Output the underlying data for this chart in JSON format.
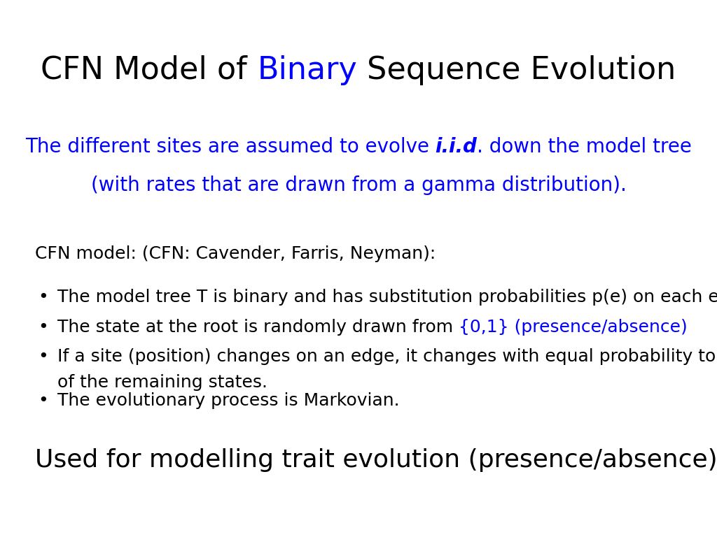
{
  "title_parts": [
    {
      "text": "CFN Model of ",
      "color": "#000000",
      "bold": false,
      "italic": false
    },
    {
      "text": "Binary",
      "color": "#0000FF",
      "bold": false,
      "italic": false
    },
    {
      "text": " Sequence Evolution",
      "color": "#000000",
      "bold": false,
      "italic": false
    }
  ],
  "subtitle_line1_parts": [
    {
      "text": "The different sites are assumed to evolve ",
      "color": "#0000FF",
      "bold": false,
      "italic": false
    },
    {
      "text": "i.i.d",
      "color": "#0000FF",
      "bold": true,
      "italic": true
    },
    {
      "text": ". down the model tree",
      "color": "#0000FF",
      "bold": false,
      "italic": false
    }
  ],
  "subtitle_line2": "(with rates that are drawn from a gamma distribution).",
  "subtitle_color": "#0000FF",
  "cfn_header": "CFN model: (CFN: Cavender, Farris, Neyman):",
  "bullet_items": [
    {
      "parts": [
        {
          "text": "The model tree T is binary and has substitution probabilities p(e) on each edge e.",
          "color": "#000000",
          "bold": false,
          "italic": false
        }
      ],
      "wrap_line2": null
    },
    {
      "parts": [
        {
          "text": "The state at the root is randomly drawn from ",
          "color": "#000000",
          "bold": false,
          "italic": false
        },
        {
          "text": "{0,1} (presence/absence)",
          "color": "#0000FF",
          "bold": false,
          "italic": false
        }
      ],
      "wrap_line2": null
    },
    {
      "parts": [
        {
          "text": "If a site (position) changes on an edge, it changes with equal probability to each",
          "color": "#000000",
          "bold": false,
          "italic": false
        }
      ],
      "wrap_line2": "of the remaining states."
    },
    {
      "parts": [
        {
          "text": "The evolutionary process is Markovian.",
          "color": "#000000",
          "bold": false,
          "italic": false
        }
      ],
      "wrap_line2": null
    }
  ],
  "footer": "Used for modelling trait evolution (presence/absence)",
  "background_color": "#ffffff",
  "title_fontsize": 32,
  "subtitle_fontsize": 20,
  "body_fontsize": 18,
  "footer_fontsize": 26
}
